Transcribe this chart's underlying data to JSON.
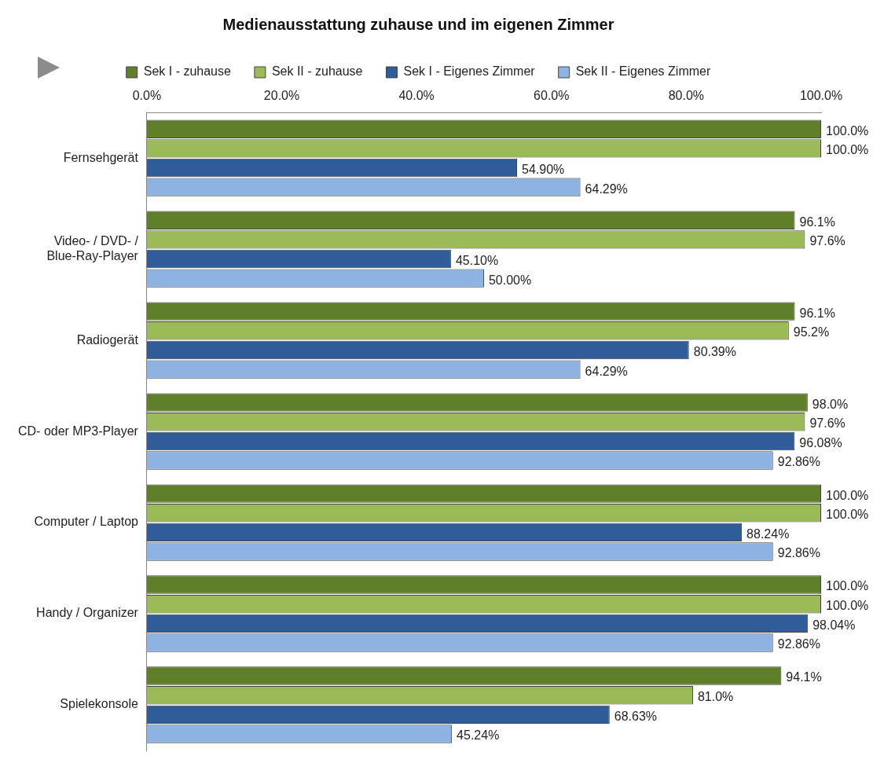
{
  "chart_data": {
    "type": "bar",
    "orientation": "horizontal",
    "title": "Medienausstattung zuhause und im eigenen Zimmer",
    "categories": [
      "Fernsehgerät",
      "Video- / DVD- / Blue-Ray-Player",
      "Radiogerät",
      "CD- oder MP3-Player",
      "Computer / Laptop",
      "Handy / Organizer",
      "Spielekonsole"
    ],
    "series": [
      {
        "name": "Sek I - zuhause",
        "color": "#5f7f2b",
        "values": [
          100,
          96.1,
          96.1,
          98,
          100,
          100,
          94.1
        ],
        "value_labels": [
          "100.0%",
          "96.1%",
          "96.1%",
          "98.0%",
          "100.0%",
          "100.0%",
          "94.1%"
        ]
      },
      {
        "name": "Sek II - zuhause",
        "color": "#9bbb59",
        "values": [
          100,
          97.6,
          95.2,
          97.6,
          100,
          100,
          81
        ],
        "value_labels": [
          "100.0%",
          "97.6%",
          "95.2%",
          "97.6%",
          "100.0%",
          "100.0%",
          "81.0%"
        ]
      },
      {
        "name": "Sek I - Eigenes Zimmer",
        "color": "#2f5d99",
        "values": [
          54.9,
          45.1,
          80.39,
          96.08,
          88.24,
          98.04,
          68.63
        ],
        "value_labels": [
          "54.90%",
          "45.10%",
          "80.39%",
          "96.08%",
          "88.24%",
          "98.04%",
          "68.63%"
        ]
      },
      {
        "name": "Sek II - Eigenes Zimmer",
        "color": "#8db3e2",
        "values": [
          64.29,
          50,
          64.29,
          92.86,
          92.86,
          92.86,
          45.24
        ],
        "value_labels": [
          "64.29%",
          "50.00%",
          "64.29%",
          "92.86%",
          "92.86%",
          "92.86%",
          "45.24%"
        ]
      }
    ],
    "xlim": [
      0,
      100
    ],
    "xticks": [
      {
        "value": 0,
        "label": "0.0%"
      },
      {
        "value": 20,
        "label": "20.0%"
      },
      {
        "value": 40,
        "label": "40.0%"
      },
      {
        "value": 60,
        "label": "60.0%"
      },
      {
        "value": 80,
        "label": "80.0%"
      },
      {
        "value": 100,
        "label": "100.0%"
      }
    ],
    "legend": "top",
    "grid": false
  }
}
